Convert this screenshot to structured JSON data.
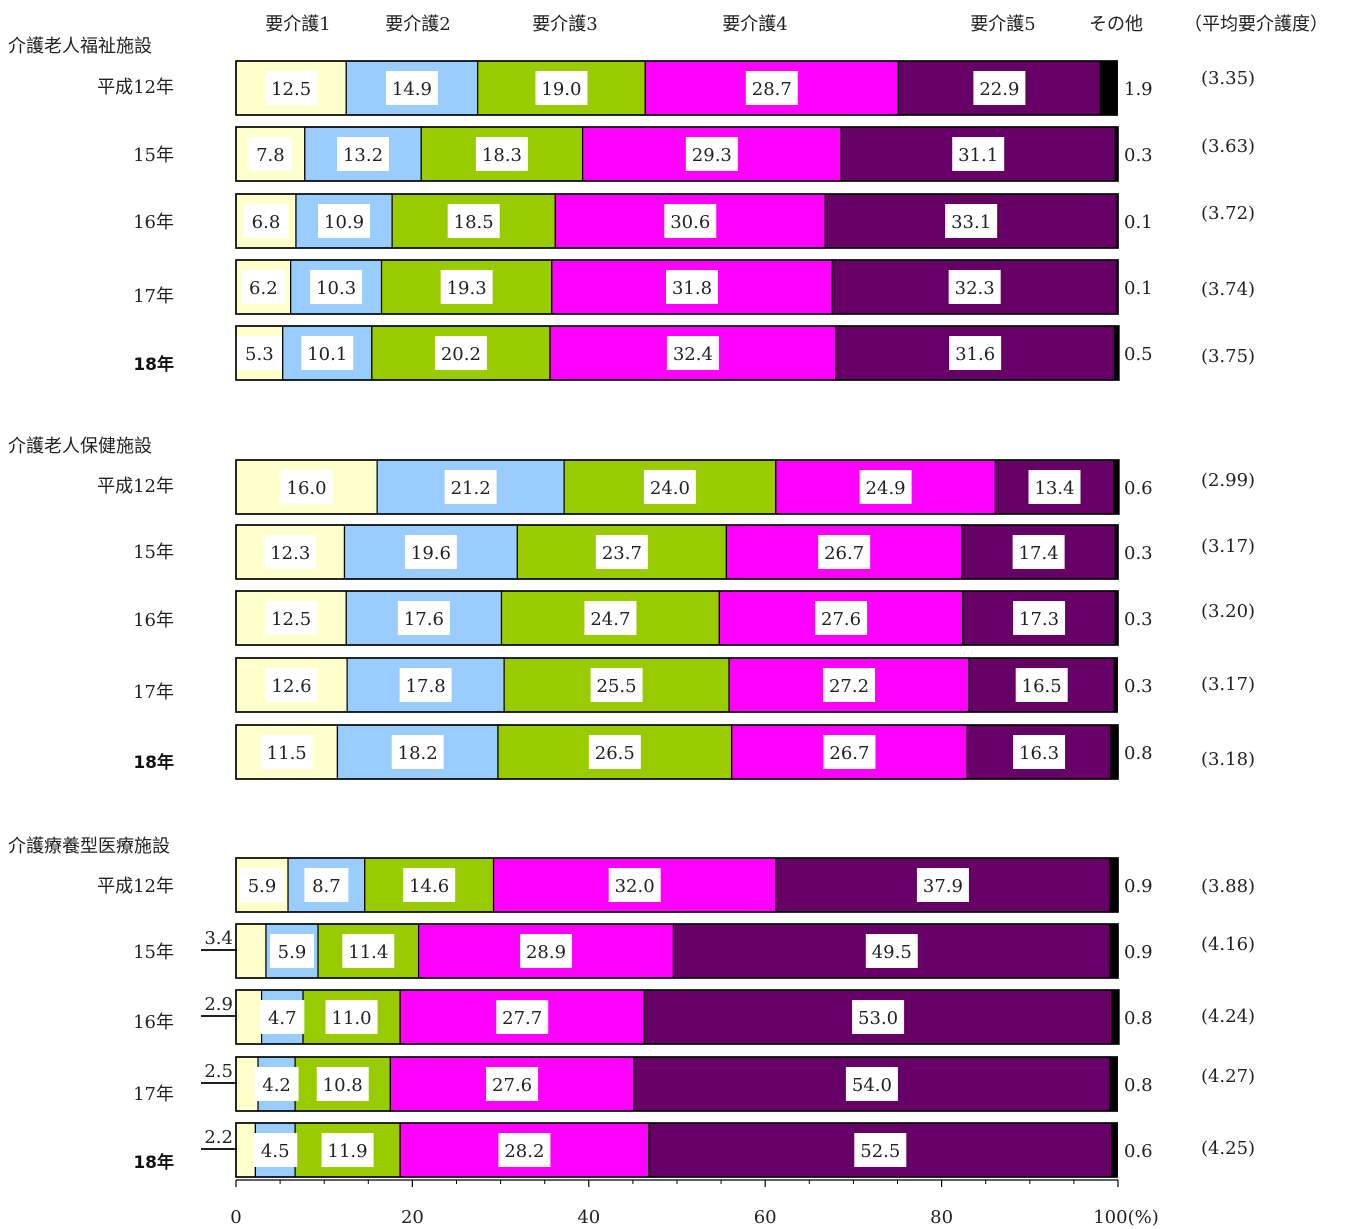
{
  "chart_data": {
    "type": "bar",
    "orientation": "horizontal",
    "stacked": true,
    "xlim": [
      0,
      100
    ],
    "x_ticks": [
      "0",
      "20",
      "40",
      "60",
      "80",
      "100(%)"
    ],
    "legend_position": "top",
    "series": [
      {
        "name": "要介護1",
        "color": "#FFFFCC"
      },
      {
        "name": "要介護2",
        "color": "#99CCFF"
      },
      {
        "name": "要介護3",
        "color": "#99CC00"
      },
      {
        "name": "要介護4",
        "color": "#FF00FF"
      },
      {
        "name": "要介護5",
        "color": "#660066"
      },
      {
        "name": "その他",
        "color": "#000000"
      }
    ],
    "average_header": "（平均要介護度）",
    "groups": [
      {
        "name": "介護老人福祉施設",
        "rows": [
          {
            "label": "平成12年",
            "bold": false,
            "values": [
              12.5,
              14.9,
              19.0,
              28.7,
              22.9,
              1.9
            ],
            "labels": [
              "12.5",
              "14.9",
              "19.0",
              "28.7",
              "22.9",
              "1.9"
            ],
            "average": "(3.35)"
          },
          {
            "label": "15年",
            "bold": false,
            "values": [
              7.8,
              13.2,
              18.3,
              29.3,
              31.1,
              0.3
            ],
            "labels": [
              "7.8",
              "13.2",
              "18.3",
              "29.3",
              "31.1",
              "0.3"
            ],
            "average": "(3.63)"
          },
          {
            "label": "16年",
            "bold": false,
            "values": [
              6.8,
              10.9,
              18.5,
              30.6,
              33.1,
              0.1
            ],
            "labels": [
              "6.8",
              "10.9",
              "18.5",
              "30.6",
              "33.1",
              "0.1"
            ],
            "average": "(3.72)"
          },
          {
            "label": "17年",
            "bold": false,
            "values": [
              6.2,
              10.3,
              19.3,
              31.8,
              32.3,
              0.1
            ],
            "labels": [
              "6.2",
              "10.3",
              "19.3",
              "31.8",
              "32.3",
              "0.1"
            ],
            "average": "(3.74)"
          },
          {
            "label": "18年",
            "bold": true,
            "values": [
              5.3,
              10.1,
              20.2,
              32.4,
              31.6,
              0.5
            ],
            "labels": [
              "5.3",
              "10.1",
              "20.2",
              "32.4",
              "31.6",
              "0.5"
            ],
            "average": "(3.75)"
          }
        ]
      },
      {
        "name": "介護老人保健施設",
        "rows": [
          {
            "label": "平成12年",
            "bold": false,
            "values": [
              16.0,
              21.2,
              24.0,
              24.9,
              13.4,
              0.6
            ],
            "labels": [
              "16.0",
              "21.2",
              "24.0",
              "24.9",
              "13.4",
              "0.6"
            ],
            "average": "(2.99)"
          },
          {
            "label": "15年",
            "bold": false,
            "values": [
              12.3,
              19.6,
              23.7,
              26.7,
              17.4,
              0.3
            ],
            "labels": [
              "12.3",
              "19.6",
              "23.7",
              "26.7",
              "17.4",
              "0.3"
            ],
            "average": "(3.17)"
          },
          {
            "label": "16年",
            "bold": false,
            "values": [
              12.5,
              17.6,
              24.7,
              27.6,
              17.3,
              0.3
            ],
            "labels": [
              "12.5",
              "17.6",
              "24.7",
              "27.6",
              "17.3",
              "0.3"
            ],
            "average": "(3.20)"
          },
          {
            "label": "17年",
            "bold": false,
            "values": [
              12.6,
              17.8,
              25.5,
              27.2,
              16.5,
              0.3
            ],
            "labels": [
              "12.6",
              "17.8",
              "25.5",
              "27.2",
              "16.5",
              "0.3"
            ],
            "average": "(3.17)"
          },
          {
            "label": "18年",
            "bold": true,
            "values": [
              11.5,
              18.2,
              26.5,
              26.7,
              16.3,
              0.8
            ],
            "labels": [
              "11.5",
              "18.2",
              "26.5",
              "26.7",
              "16.3",
              "0.8"
            ],
            "average": "(3.18)"
          }
        ]
      },
      {
        "name": "介護療養型医療施設",
        "rows": [
          {
            "label": "平成12年",
            "bold": false,
            "values": [
              5.9,
              8.7,
              14.6,
              32.0,
              37.9,
              0.9
            ],
            "labels": [
              "5.9",
              "8.7",
              "14.6",
              "32.0",
              "37.9",
              "0.9"
            ],
            "average": "(3.88)"
          },
          {
            "label": "15年",
            "bold": false,
            "values": [
              3.4,
              5.9,
              11.4,
              28.9,
              49.5,
              0.9
            ],
            "labels": [
              "3.4",
              "5.9",
              "11.4",
              "28.9",
              "49.5",
              "0.9"
            ],
            "average": "(4.16)"
          },
          {
            "label": "16年",
            "bold": false,
            "values": [
              2.9,
              4.7,
              11.0,
              27.7,
              53.0,
              0.8
            ],
            "labels": [
              "2.9",
              "4.7",
              "11.0",
              "27.7",
              "53.0",
              "0.8"
            ],
            "average": "(4.24)"
          },
          {
            "label": "17年",
            "bold": false,
            "values": [
              2.5,
              4.2,
              10.8,
              27.6,
              54.0,
              0.8
            ],
            "labels": [
              "2.5",
              "4.2",
              "10.8",
              "27.6",
              "54.0",
              "0.8"
            ],
            "average": "(4.27)"
          },
          {
            "label": "18年",
            "bold": true,
            "values": [
              2.2,
              4.5,
              11.9,
              28.2,
              52.5,
              0.6
            ],
            "labels": [
              "2.2",
              "4.5",
              "11.9",
              "28.2",
              "52.5",
              "0.6"
            ],
            "average": "(4.25)"
          }
        ]
      }
    ]
  }
}
